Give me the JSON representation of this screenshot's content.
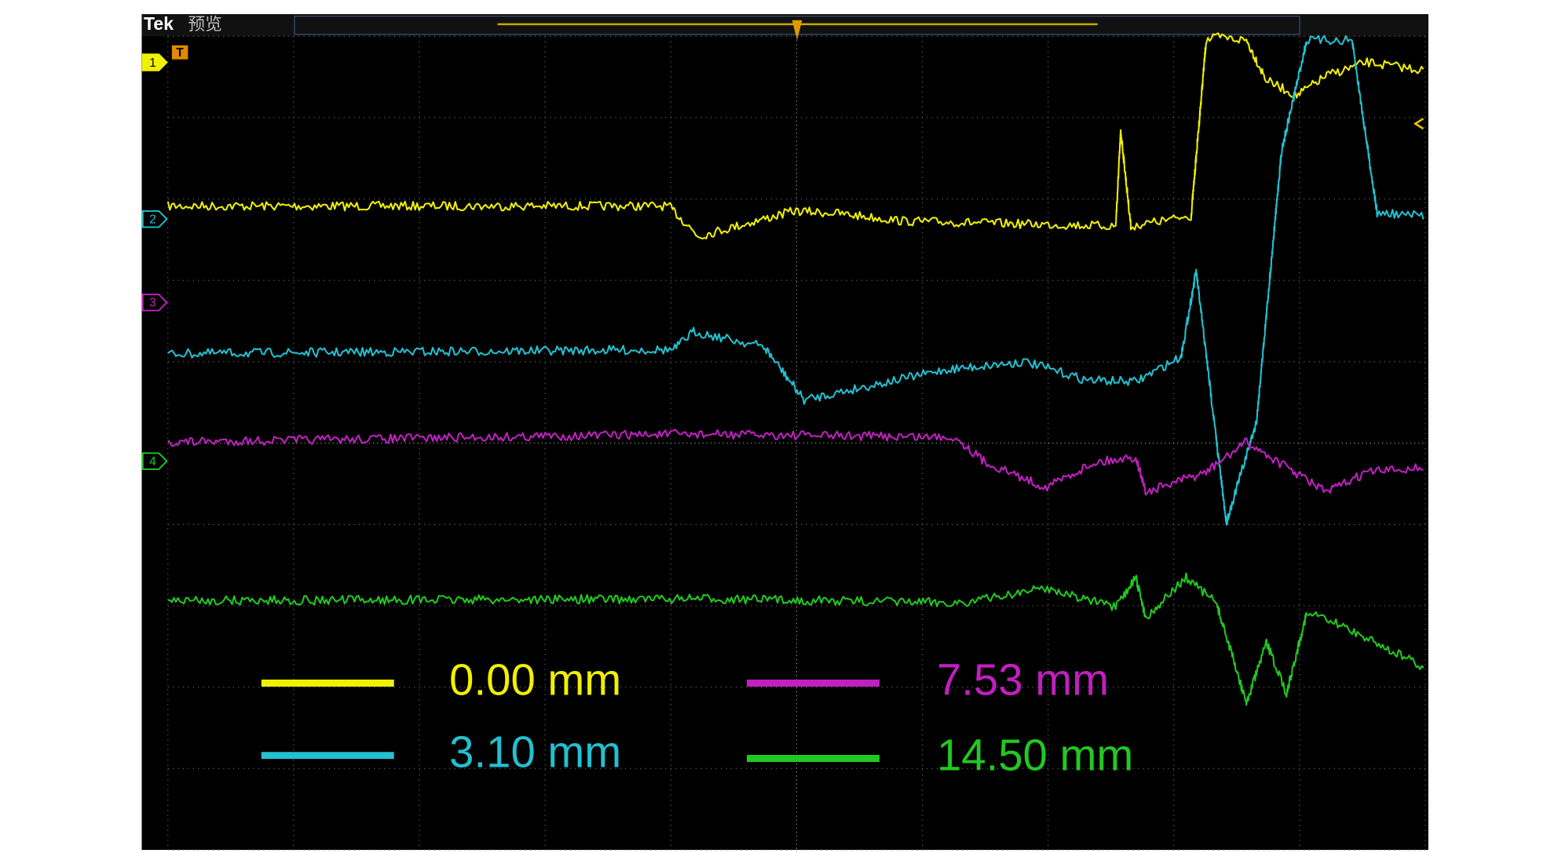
{
  "header": {
    "brand": "Tek",
    "mode": "预览"
  },
  "trigger_marker": "T",
  "channel_markers": [
    {
      "label": "1",
      "color": "#f0f000"
    },
    {
      "label": "2",
      "color": "#22c0d0"
    },
    {
      "label": "3",
      "color": "#c020c0"
    },
    {
      "label": "4",
      "color": "#22c822"
    }
  ],
  "legend": [
    {
      "label": "0.00 mm",
      "color": "#f0f000"
    },
    {
      "label": "3.10 mm",
      "color": "#22c0d0"
    },
    {
      "label": "7.53 mm",
      "color": "#c020c0"
    },
    {
      "label": "14.50 mm",
      "color": "#22c822"
    }
  ]
}
